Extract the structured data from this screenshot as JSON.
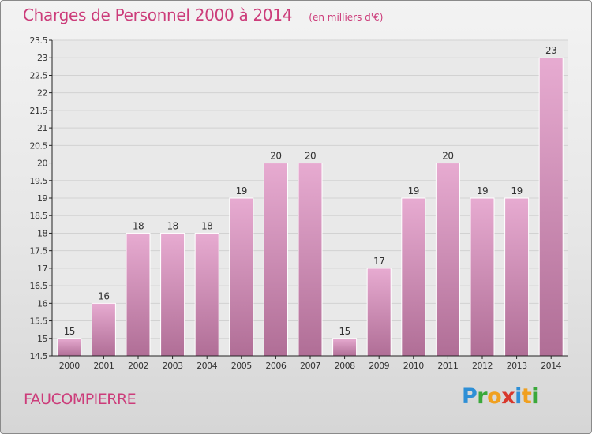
{
  "chart_data": {
    "type": "bar",
    "title": "Charges de Personnel 2000 à 2014",
    "subtitle": "(en milliers d'€)",
    "categories": [
      "2000",
      "2001",
      "2002",
      "2003",
      "2004",
      "2005",
      "2006",
      "2007",
      "2008",
      "2009",
      "2010",
      "2011",
      "2012",
      "2013",
      "2014"
    ],
    "values": [
      15,
      16,
      18,
      18,
      18,
      19,
      20,
      20,
      15,
      17,
      19,
      20,
      19,
      19,
      23
    ],
    "bar_value_positions": [
      15,
      16,
      18,
      18,
      18,
      19,
      20,
      20,
      15,
      17,
      19,
      20,
      19,
      19,
      23
    ],
    "ylim": [
      14.5,
      23.5
    ],
    "yticks": [
      "14.5",
      "15",
      "15.5",
      "16",
      "16.5",
      "17",
      "17.5",
      "18",
      "18.5",
      "19",
      "19.5",
      "20",
      "20.5",
      "21",
      "21.5",
      "22",
      "22.5",
      "23",
      "23.5"
    ],
    "grid": true,
    "xlabel": "",
    "ylabel": "",
    "colors": {
      "bar": "#dc9cc4",
      "bar_dark": "#b06e96",
      "accent": "#cc3c7a",
      "grid": "#d2d2d2",
      "axis": "#222222",
      "text": "#333333"
    }
  },
  "footer": {
    "commune": "FAUCOMPIERRE",
    "brand_letters": [
      {
        "ch": "P",
        "color": "#2e8fd6"
      },
      {
        "ch": "r",
        "color": "#3aa83a"
      },
      {
        "ch": "o",
        "color": "#f0a020"
      },
      {
        "ch": "x",
        "color": "#d8382c"
      },
      {
        "ch": "i",
        "color": "#2e8fd6"
      },
      {
        "ch": "t",
        "color": "#f0a020"
      },
      {
        "ch": "i",
        "color": "#3aa83a"
      }
    ]
  }
}
